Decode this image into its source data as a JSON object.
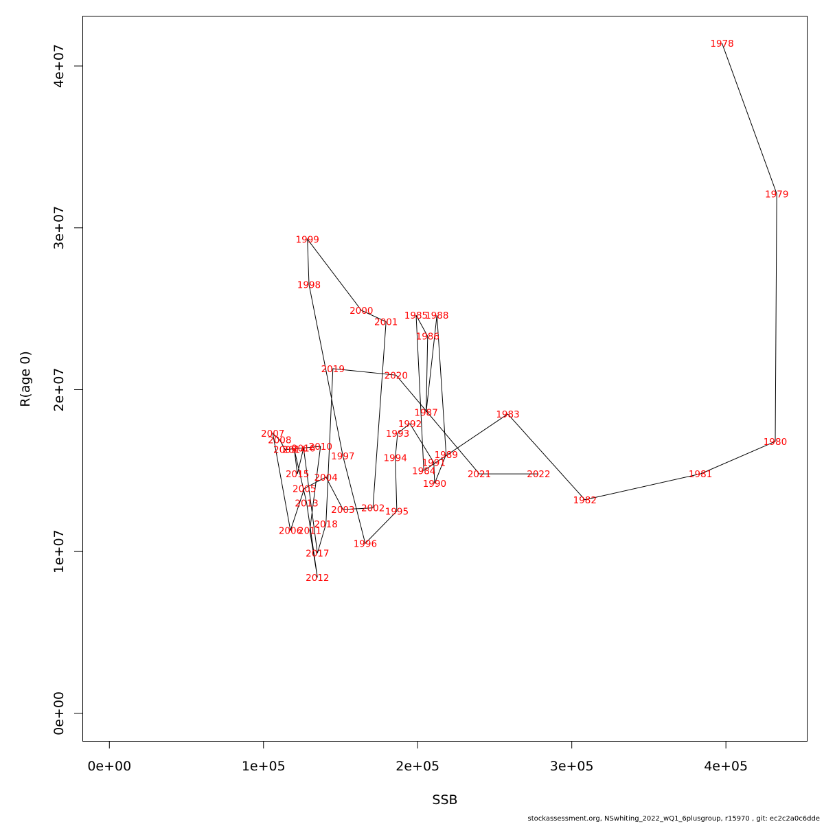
{
  "chart_data": {
    "type": "line",
    "xlabel": "SSB",
    "ylabel": "R(age 0)",
    "xlim": [
      -17500,
      452500
    ],
    "ylim": [
      -1700000,
      43100000
    ],
    "x_ticks": [
      0,
      100000,
      200000,
      300000,
      400000
    ],
    "x_tick_labels": [
      "0e+00",
      "1e+05",
      "2e+05",
      "3e+05",
      "4e+05"
    ],
    "y_ticks": [
      0,
      10000000,
      20000000,
      30000000,
      40000000
    ],
    "y_tick_labels": [
      "0e+00",
      "1e+07",
      "2e+07",
      "3e+07",
      "4e+07"
    ],
    "grid": false,
    "legend": "none",
    "line_color": "#000000",
    "label_color": "#ff0000",
    "points": [
      {
        "label": "1978",
        "ssb": 397500,
        "r": 41400000
      },
      {
        "label": "1979",
        "ssb": 433000,
        "r": 32100000
      },
      {
        "label": "1980",
        "ssb": 432000,
        "r": 16800000
      },
      {
        "label": "1981",
        "ssb": 383500,
        "r": 14800000
      },
      {
        "label": "1982",
        "ssb": 308500,
        "r": 13200000
      },
      {
        "label": "1983",
        "ssb": 258500,
        "r": 18500000
      },
      {
        "label": "1984",
        "ssb": 204000,
        "r": 15000000
      },
      {
        "label": "1985",
        "ssb": 199000,
        "r": 24600000
      },
      {
        "label": "1986",
        "ssb": 206500,
        "r": 23300000
      },
      {
        "label": "1987",
        "ssb": 205500,
        "r": 18600000
      },
      {
        "label": "1988",
        "ssb": 212500,
        "r": 24600000
      },
      {
        "label": "1989",
        "ssb": 218500,
        "r": 16000000
      },
      {
        "label": "1990",
        "ssb": 211000,
        "r": 14200000
      },
      {
        "label": "1991",
        "ssb": 210500,
        "r": 15500000
      },
      {
        "label": "1992",
        "ssb": 195000,
        "r": 17900000
      },
      {
        "label": "1993",
        "ssb": 187000,
        "r": 17300000
      },
      {
        "label": "1994",
        "ssb": 185500,
        "r": 15800000
      },
      {
        "label": "1995",
        "ssb": 186500,
        "r": 12500000
      },
      {
        "label": "1996",
        "ssb": 166000,
        "r": 10500000
      },
      {
        "label": "1997",
        "ssb": 151500,
        "r": 15900000
      },
      {
        "label": "1998",
        "ssb": 129500,
        "r": 26500000
      },
      {
        "label": "1999",
        "ssb": 128500,
        "r": 29300000
      },
      {
        "label": "2000",
        "ssb": 163500,
        "r": 24900000
      },
      {
        "label": "2001",
        "ssb": 179500,
        "r": 24200000
      },
      {
        "label": "2002",
        "ssb": 171000,
        "r": 12700000
      },
      {
        "label": "2003",
        "ssb": 151500,
        "r": 12600000
      },
      {
        "label": "2004",
        "ssb": 140500,
        "r": 14600000
      },
      {
        "label": "2005",
        "ssb": 126500,
        "r": 13900000
      },
      {
        "label": "2006",
        "ssb": 117500,
        "r": 11300000
      },
      {
        "label": "2007",
        "ssb": 106000,
        "r": 17300000
      },
      {
        "label": "2008",
        "ssb": 110500,
        "r": 16900000
      },
      {
        "label": "2009",
        "ssb": 114000,
        "r": 16300000
      },
      {
        "label": "2010",
        "ssb": 137000,
        "r": 16500000
      },
      {
        "label": "2011",
        "ssb": 130000,
        "r": 11300000
      },
      {
        "label": "2012",
        "ssb": 135000,
        "r": 8400000
      },
      {
        "label": "2013",
        "ssb": 128000,
        "r": 13000000
      },
      {
        "label": "2014",
        "ssb": 120000,
        "r": 16300000
      },
      {
        "label": "2015",
        "ssb": 122000,
        "r": 14800000
      },
      {
        "label": "2016",
        "ssb": 126000,
        "r": 16400000
      },
      {
        "label": "2017",
        "ssb": 135000,
        "r": 9900000
      },
      {
        "label": "2018",
        "ssb": 140500,
        "r": 11700000
      },
      {
        "label": "2019",
        "ssb": 145000,
        "r": 21300000
      },
      {
        "label": "2020",
        "ssb": 186000,
        "r": 20900000
      },
      {
        "label": "2021",
        "ssb": 240000,
        "r": 14800000
      },
      {
        "label": "2022",
        "ssb": 278500,
        "r": 14800000
      }
    ]
  },
  "footer_text": "stockassessment.org, NSwhiting_2022_wQ1_6plusgroup, r15970 , git: ec2c2a0c6dde"
}
